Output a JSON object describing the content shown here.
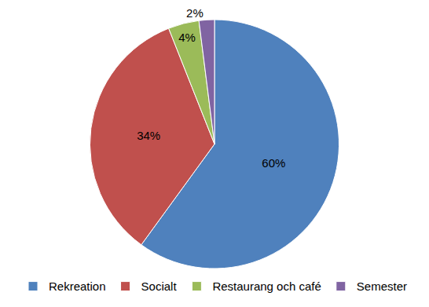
{
  "chart_data": {
    "type": "pie",
    "categories": [
      "Rekreation",
      "Socialt",
      "Restaurang och café",
      "Semester"
    ],
    "values": [
      60,
      34,
      4,
      2
    ],
    "value_labels": [
      "60%",
      "34%",
      "4%",
      "2%"
    ],
    "colors": [
      "#4f81bd",
      "#c0504d",
      "#9bbb59",
      "#8064a2"
    ],
    "data_labels": true,
    "legend": "bottom"
  }
}
